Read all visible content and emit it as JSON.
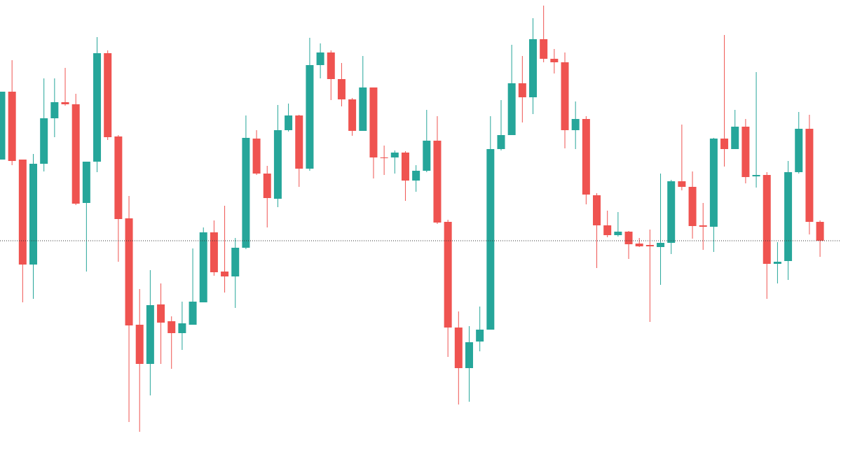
{
  "chart_data": {
    "type": "candlestick",
    "up_color": "#26a69a",
    "down_color": "#ef5350",
    "ylim": [
      0,
      653
    ],
    "reference_line": {
      "value": 309,
      "color": "#333333",
      "style": "dotted"
    },
    "open": [
      425,
      522,
      425,
      275,
      419,
      484,
      507,
      504,
      363,
      422,
      577,
      458,
      341,
      189,
      133,
      218,
      194,
      177,
      189,
      221,
      321,
      265,
      258,
      299,
      455,
      405,
      369,
      467,
      488,
      412,
      560,
      578,
      540,
      511,
      466,
      528,
      428,
      428,
      435,
      395,
      409,
      452,
      336,
      185,
      127,
      165,
      182,
      440,
      460,
      534,
      514,
      597,
      569,
      564,
      467,
      483,
      374,
      331,
      317,
      322,
      305,
      303,
      300,
      306,
      394,
      386,
      331,
      329,
      455,
      440,
      472,
      401,
      403,
      276,
      280,
      407,
      469,
      336
    ],
    "high": [
      522,
      567,
      425,
      433,
      541,
      541,
      556,
      519,
      422,
      600,
      581,
      460,
      373,
      240,
      267,
      248,
      201,
      222,
      298,
      328,
      338,
      359,
      313,
      488,
      467,
      416,
      503,
      505,
      489,
      599,
      591,
      581,
      563,
      513,
      573,
      528,
      445,
      438,
      437,
      417,
      496,
      487,
      339,
      208,
      187,
      215,
      487,
      510,
      589,
      573,
      627,
      645,
      583,
      578,
      508,
      487,
      377,
      352,
      350,
      323,
      313,
      325,
      405,
      396,
      475,
      408,
      363,
      456,
      603,
      496,
      483,
      550,
      407,
      307,
      423,
      493,
      489,
      338
    ],
    "low": [
      425,
      417,
      221,
      226,
      408,
      457,
      502,
      360,
      265,
      407,
      453,
      279,
      50,
      36,
      88,
      133,
      126,
      153,
      189,
      221,
      259,
      235,
      213,
      297,
      403,
      328,
      357,
      465,
      386,
      409,
      541,
      510,
      501,
      459,
      466,
      398,
      403,
      405,
      366,
      379,
      407,
      333,
      143,
      75,
      79,
      151,
      182,
      438,
      460,
      478,
      490,
      564,
      548,
      441,
      440,
      361,
      270,
      314,
      315,
      283,
      300,
      193,
      246,
      290,
      381,
      312,
      296,
      293,
      415,
      440,
      391,
      385,
      226,
      248,
      253,
      405,
      318,
      286
    ],
    "close": [
      522,
      423,
      275,
      419,
      484,
      507,
      504,
      362,
      422,
      577,
      457,
      340,
      188,
      133,
      217,
      192,
      177,
      191,
      222,
      321,
      264,
      258,
      299,
      456,
      405,
      370,
      467,
      488,
      412,
      560,
      578,
      540,
      511,
      466,
      528,
      428,
      427,
      435,
      395,
      409,
      452,
      335,
      185,
      127,
      164,
      182,
      440,
      460,
      534,
      514,
      597,
      569,
      564,
      467,
      483,
      375,
      331,
      317,
      322,
      304,
      301,
      301,
      306,
      394,
      386,
      330,
      329,
      455,
      440,
      472,
      400,
      403,
      276,
      279,
      407,
      469,
      336,
      309
    ]
  }
}
